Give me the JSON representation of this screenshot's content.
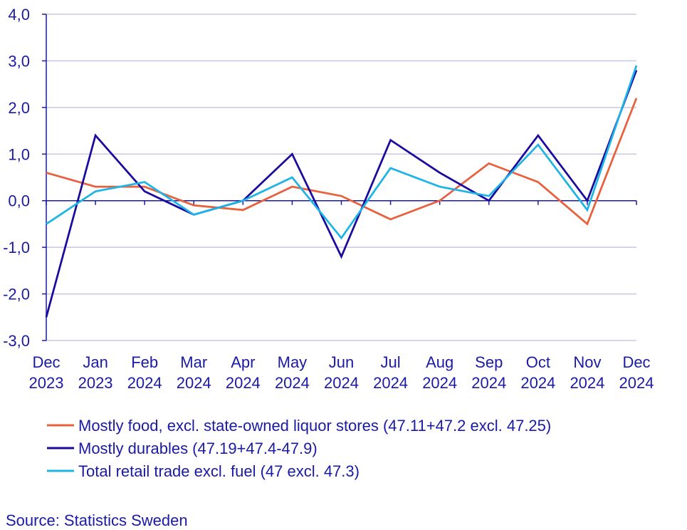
{
  "chart_data": {
    "type": "line",
    "categories": [
      [
        "Dec",
        "2023"
      ],
      [
        "Jan",
        "2023"
      ],
      [
        "Feb",
        "2024"
      ],
      [
        "Mar",
        "2024"
      ],
      [
        "Apr",
        "2024"
      ],
      [
        "May",
        "2024"
      ],
      [
        "Jun",
        "2024"
      ],
      [
        "Jul",
        "2024"
      ],
      [
        "Aug",
        "2024"
      ],
      [
        "Sep",
        "2024"
      ],
      [
        "Oct",
        "2024"
      ],
      [
        "Nov",
        "2024"
      ],
      [
        "Dec",
        "2024"
      ]
    ],
    "ylim": [
      -3.0,
      4.0
    ],
    "yticks": [
      "-3,0",
      "-2,0",
      "-1,0",
      "0,0",
      "1,0",
      "2,0",
      "3,0",
      "4,0"
    ],
    "ytick_values": [
      -3,
      -2,
      -1,
      0,
      1,
      2,
      3,
      4
    ],
    "grid": true,
    "legend_position": "bottom",
    "series": [
      {
        "name": "Mostly food, excl. state-owned liquor stores (47.11+47.2 excl. 47.25)",
        "color": "#e8603c",
        "values": [
          0.6,
          0.3,
          0.3,
          -0.1,
          -0.2,
          0.3,
          0.1,
          -0.4,
          0.0,
          0.8,
          0.4,
          -0.5,
          2.2
        ]
      },
      {
        "name": "Mostly durables (47.19+47.4-47.9)",
        "color": "#1a0a9e",
        "values": [
          -2.5,
          1.4,
          0.2,
          -0.3,
          0.0,
          1.0,
          -1.2,
          1.3,
          0.6,
          0.0,
          1.4,
          0.0,
          2.8
        ]
      },
      {
        "name": "Total retail trade excl. fuel (47 excl. 47.3)",
        "color": "#1eb4e6",
        "values": [
          -0.5,
          0.2,
          0.4,
          -0.3,
          0.0,
          0.5,
          -0.8,
          0.7,
          0.3,
          0.1,
          1.2,
          -0.2,
          2.9
        ]
      }
    ],
    "colors": {
      "grid": "#c8c8e6",
      "axis": "#1a1aa6",
      "text": "#1a1aa6"
    }
  },
  "source": "Source: Statistics Sweden"
}
